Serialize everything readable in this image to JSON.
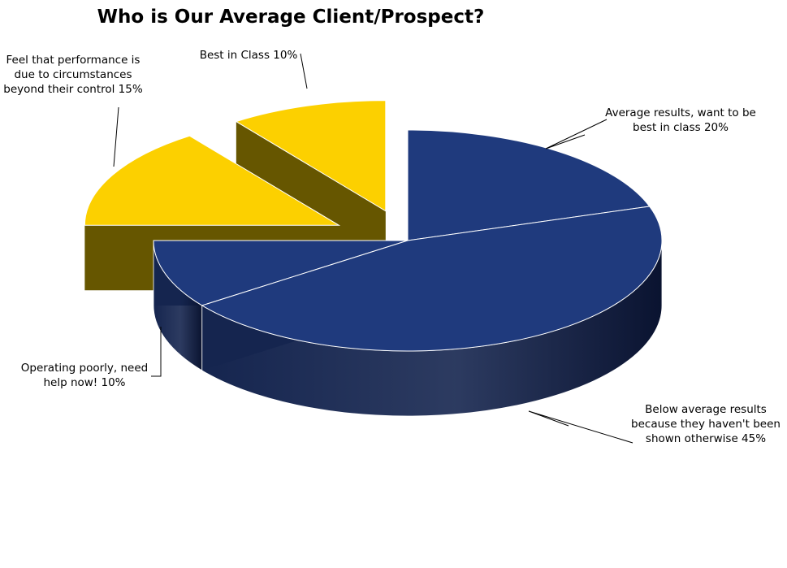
{
  "chart_data": {
    "type": "pie",
    "style": "3d-exploded",
    "title": "Who is Our Average Client/Prospect?",
    "unit": "%",
    "slices": [
      {
        "label_lines": [
          "Average results, want to be",
          "best in class 20%"
        ],
        "value": 20,
        "color": "#1F3A7D",
        "side_color": "#15254F",
        "exploded": false
      },
      {
        "label_lines": [
          "Below average results",
          "because they haven't been",
          "shown otherwise 45%"
        ],
        "value": 45,
        "color": "#1F3A7D",
        "side_color": "#15254F",
        "exploded": false
      },
      {
        "label_lines": [
          "Operating poorly, need",
          "help now! 10%"
        ],
        "value": 10,
        "color": "#1F3A7D",
        "side_color": "#15254F",
        "exploded": false
      },
      {
        "label_lines": [
          "Feel that performance is",
          "due to circumstances",
          "beyond their control 15%"
        ],
        "value": 15,
        "color": "#FCD000",
        "side_color": "#665600",
        "exploded": true
      },
      {
        "label_lines": [
          "Best in Class 10%"
        ],
        "value": 10,
        "color": "#FCD000",
        "side_color": "#665600",
        "exploded": true
      }
    ],
    "legend": "none"
  }
}
